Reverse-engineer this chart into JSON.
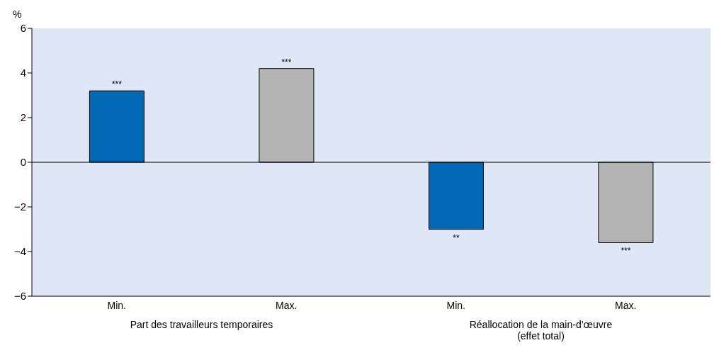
{
  "chart_data": {
    "type": "bar",
    "ylabel": "%",
    "categories": [
      "Min.",
      "Max.",
      "Min.",
      "Max."
    ],
    "values": [
      3.2,
      4.2,
      -3.0,
      -3.6
    ],
    "colors": [
      "#0068b5",
      "#b3b3b3",
      "#0068b5",
      "#b3b3b3"
    ],
    "value_labels": [
      "***",
      "***",
      "**",
      "***"
    ],
    "ylim": [
      -6,
      6
    ],
    "yticks": [
      {
        "value": -6,
        "label": "−6"
      },
      {
        "value": -4,
        "label": "−4"
      },
      {
        "value": -2,
        "label": "−2"
      },
      0,
      2,
      4,
      6
    ],
    "ref_lines": [
      {
        "axis": "y",
        "value": 0,
        "color": "#000000"
      }
    ],
    "annotations": [
      "Part des travailleurs temporaires",
      "Réallocation de la main-d’œuvre (effet total)"
    ],
    "grid": false
  }
}
